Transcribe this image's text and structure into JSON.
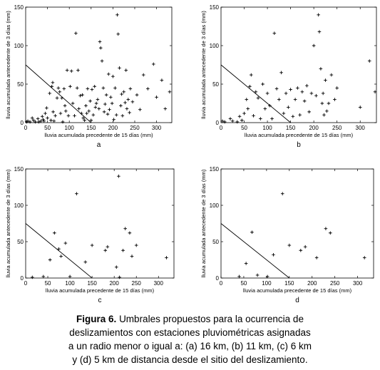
{
  "caption": {
    "label": "Figura 6.",
    "lines": [
      "Umbrales propuestos para la ocurrencia de",
      "deslizamientos con estaciones pluviométricas asignadas",
      "a un radio menor o igual a: (a) 16 km, (b) 11 km, (c) 6 km",
      "y (d) 5 km de distancia desde el sitio del deslizamiento."
    ]
  },
  "chart_data": [
    {
      "panel": "a",
      "type": "scatter",
      "xlabel": "lluvia acumulada precedente de 15 días (mm)",
      "ylabel": "lluvia acumulada antecedente de 3 días (mm)",
      "xlim": [
        0,
        335
      ],
      "ylim": [
        0,
        150
      ],
      "xticks": [
        0,
        50,
        100,
        150,
        200,
        250,
        300
      ],
      "yticks": [
        0,
        50,
        100,
        150
      ],
      "threshold_line": [
        [
          0,
          75
        ],
        [
          150,
          0
        ]
      ],
      "points": [
        [
          2,
          1
        ],
        [
          5,
          2
        ],
        [
          10,
          1
        ],
        [
          15,
          6
        ],
        [
          18,
          3
        ],
        [
          22,
          1
        ],
        [
          28,
          5
        ],
        [
          30,
          1
        ],
        [
          35,
          2
        ],
        [
          38,
          8
        ],
        [
          40,
          4
        ],
        [
          42,
          2
        ],
        [
          45,
          12
        ],
        [
          48,
          19
        ],
        [
          50,
          6
        ],
        [
          55,
          38
        ],
        [
          58,
          3
        ],
        [
          60,
          47
        ],
        [
          62,
          52
        ],
        [
          63,
          14
        ],
        [
          65,
          2
        ],
        [
          68,
          9
        ],
        [
          72,
          32
        ],
        [
          75,
          45
        ],
        [
          78,
          40
        ],
        [
          80,
          12
        ],
        [
          83,
          32
        ],
        [
          85,
          1
        ],
        [
          88,
          44
        ],
        [
          90,
          22
        ],
        [
          92,
          15
        ],
        [
          95,
          68
        ],
        [
          98,
          9
        ],
        [
          102,
          47
        ],
        [
          105,
          67
        ],
        [
          108,
          25
        ],
        [
          112,
          9
        ],
        [
          115,
          116
        ],
        [
          118,
          45
        ],
        [
          120,
          68
        ],
        [
          122,
          18
        ],
        [
          125,
          35
        ],
        [
          128,
          12
        ],
        [
          130,
          36
        ],
        [
          132,
          6
        ],
        [
          135,
          3
        ],
        [
          138,
          22
        ],
        [
          140,
          12
        ],
        [
          142,
          44
        ],
        [
          145,
          15
        ],
        [
          148,
          28
        ],
        [
          150,
          3
        ],
        [
          152,
          43
        ],
        [
          155,
          10
        ],
        [
          158,
          47
        ],
        [
          160,
          20
        ],
        [
          162,
          25
        ],
        [
          165,
          30
        ],
        [
          168,
          18
        ],
        [
          170,
          105
        ],
        [
          172,
          97
        ],
        [
          175,
          80
        ],
        [
          178,
          45
        ],
        [
          180,
          14
        ],
        [
          182,
          24
        ],
        [
          185,
          36
        ],
        [
          188,
          11
        ],
        [
          190,
          63
        ],
        [
          192,
          17
        ],
        [
          195,
          33
        ],
        [
          198,
          25
        ],
        [
          200,
          60
        ],
        [
          202,
          4
        ],
        [
          205,
          45
        ],
        [
          208,
          10
        ],
        [
          210,
          140
        ],
        [
          212,
          115
        ],
        [
          215,
          71
        ],
        [
          218,
          22
        ],
        [
          220,
          37
        ],
        [
          222,
          9
        ],
        [
          225,
          40
        ],
        [
          228,
          26
        ],
        [
          230,
          68
        ],
        [
          232,
          18
        ],
        [
          235,
          30
        ],
        [
          238,
          13
        ],
        [
          240,
          44
        ],
        [
          245,
          27
        ],
        [
          255,
          36
        ],
        [
          262,
          17
        ],
        [
          270,
          62
        ],
        [
          280,
          44
        ],
        [
          293,
          76
        ],
        [
          300,
          33
        ],
        [
          312,
          55
        ],
        [
          320,
          18
        ],
        [
          330,
          40
        ]
      ]
    },
    {
      "panel": "b",
      "type": "scatter",
      "xlabel": "lluvia acumulada precedente de 15 días (mm)",
      "ylabel": "lluvia acumulada antecedente de 3 días (mm)",
      "xlim": [
        0,
        335
      ],
      "ylim": [
        0,
        150
      ],
      "xticks": [
        0,
        50,
        100,
        150,
        200,
        250,
        300
      ],
      "yticks": [
        0,
        50,
        100,
        150
      ],
      "threshold_line": [
        [
          0,
          75
        ],
        [
          150,
          0
        ]
      ],
      "points": [
        [
          3,
          2
        ],
        [
          8,
          1
        ],
        [
          20,
          5
        ],
        [
          25,
          2
        ],
        [
          35,
          1
        ],
        [
          40,
          8
        ],
        [
          45,
          3
        ],
        [
          50,
          12
        ],
        [
          55,
          30
        ],
        [
          58,
          18
        ],
        [
          62,
          47
        ],
        [
          65,
          62
        ],
        [
          70,
          9
        ],
        [
          75,
          40
        ],
        [
          80,
          32
        ],
        [
          85,
          5
        ],
        [
          90,
          50
        ],
        [
          95,
          18
        ],
        [
          100,
          38
        ],
        [
          105,
          22
        ],
        [
          110,
          5
        ],
        [
          115,
          116
        ],
        [
          120,
          44
        ],
        [
          125,
          30
        ],
        [
          130,
          65
        ],
        [
          135,
          12
        ],
        [
          140,
          38
        ],
        [
          145,
          20
        ],
        [
          150,
          43
        ],
        [
          155,
          8
        ],
        [
          160,
          30
        ],
        [
          165,
          45
        ],
        [
          170,
          10
        ],
        [
          175,
          40
        ],
        [
          180,
          28
        ],
        [
          185,
          48
        ],
        [
          190,
          14
        ],
        [
          195,
          38
        ],
        [
          200,
          100
        ],
        [
          205,
          35
        ],
        [
          210,
          140
        ],
        [
          212,
          118
        ],
        [
          215,
          70
        ],
        [
          218,
          25
        ],
        [
          220,
          38
        ],
        [
          222,
          10
        ],
        [
          225,
          55
        ],
        [
          228,
          15
        ],
        [
          232,
          25
        ],
        [
          238,
          62
        ],
        [
          245,
          30
        ],
        [
          250,
          45
        ],
        [
          300,
          20
        ],
        [
          320,
          80
        ],
        [
          332,
          40
        ]
      ]
    },
    {
      "panel": "c",
      "type": "scatter",
      "xlabel": "lluvia acumulada precedente de 15 días (mm)",
      "ylabel": "lluvia acumulada antecedente de 3 días (mm)",
      "xlim": [
        0,
        335
      ],
      "ylim": [
        0,
        150
      ],
      "xticks": [
        0,
        50,
        100,
        150,
        200,
        250,
        300
      ],
      "yticks": [
        0,
        50,
        100,
        150
      ],
      "threshold_line": [
        [
          0,
          75
        ],
        [
          150,
          0
        ]
      ],
      "points": [
        [
          15,
          1
        ],
        [
          40,
          2
        ],
        [
          55,
          25
        ],
        [
          65,
          62
        ],
        [
          75,
          40
        ],
        [
          80,
          30
        ],
        [
          90,
          48
        ],
        [
          100,
          2
        ],
        [
          115,
          116
        ],
        [
          135,
          22
        ],
        [
          150,
          45
        ],
        [
          180,
          38
        ],
        [
          185,
          43
        ],
        [
          205,
          15
        ],
        [
          210,
          140
        ],
        [
          212,
          1
        ],
        [
          220,
          38
        ],
        [
          225,
          68
        ],
        [
          235,
          62
        ],
        [
          240,
          30
        ],
        [
          250,
          45
        ],
        [
          318,
          28
        ]
      ]
    },
    {
      "panel": "d",
      "type": "scatter",
      "xlabel": "lluvia acumulada precedente de 15 días (mm)",
      "ylabel": "lluvia acumulada antecedente de 3 días (mm)",
      "xlim": [
        0,
        335
      ],
      "ylim": [
        0,
        150
      ],
      "xticks": [
        0,
        50,
        100,
        150,
        200,
        250,
        300
      ],
      "yticks": [
        0,
        50,
        100,
        150
      ],
      "threshold_line": [
        [
          0,
          75
        ],
        [
          150,
          0
        ]
      ],
      "points": [
        [
          40,
          2
        ],
        [
          55,
          20
        ],
        [
          68,
          63
        ],
        [
          80,
          4
        ],
        [
          102,
          2
        ],
        [
          115,
          32
        ],
        [
          135,
          116
        ],
        [
          150,
          45
        ],
        [
          175,
          38
        ],
        [
          185,
          43
        ],
        [
          210,
          28
        ],
        [
          230,
          68
        ],
        [
          240,
          62
        ],
        [
          315,
          28
        ]
      ]
    }
  ]
}
